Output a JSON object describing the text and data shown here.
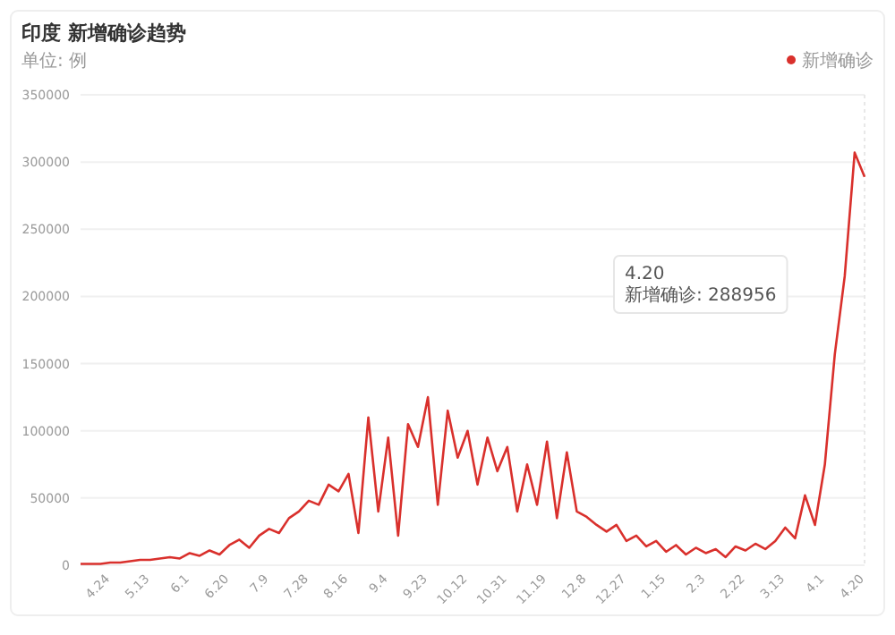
{
  "chart_data": {
    "type": "line",
    "title": "印度 新增确诊趋势",
    "subtitle": "单位: 例",
    "categories": [
      null,
      null,
      null,
      "4.24",
      null,
      null,
      null,
      "5.13",
      null,
      null,
      null,
      "6.1",
      null,
      null,
      null,
      "6.20",
      null,
      null,
      null,
      "7.9",
      null,
      null,
      null,
      "7.28",
      null,
      null,
      null,
      "8.16",
      null,
      null,
      null,
      "9.4",
      null,
      null,
      null,
      "9.23",
      null,
      null,
      null,
      "10.12",
      null,
      null,
      null,
      "10.31",
      null,
      null,
      null,
      "11.19",
      null,
      null,
      null,
      "12.8",
      null,
      null,
      null,
      "12.27",
      null,
      null,
      null,
      "1.15",
      null,
      null,
      null,
      "2.3",
      null,
      null,
      null,
      "2.22",
      null,
      null,
      null,
      "3.13",
      null,
      null,
      null,
      "4.1",
      null,
      null,
      null,
      "4.20"
    ],
    "series": [
      {
        "name": "新增确诊",
        "color": "#d9302c",
        "values": [
          1000,
          1000,
          1000,
          2000,
          2000,
          3000,
          4000,
          4000,
          5000,
          6000,
          5000,
          9000,
          7000,
          11000,
          8000,
          15000,
          19000,
          13000,
          22000,
          27000,
          24000,
          35000,
          40000,
          48000,
          45000,
          60000,
          55000,
          68000,
          24000,
          110000,
          40000,
          95000,
          22000,
          105000,
          88000,
          125000,
          45000,
          115000,
          80000,
          100000,
          60000,
          95000,
          70000,
          88000,
          40000,
          75000,
          45000,
          92000,
          35000,
          84000,
          40000,
          36000,
          30000,
          25000,
          30000,
          18000,
          22000,
          14000,
          18000,
          10000,
          15000,
          8000,
          13000,
          9000,
          12000,
          6000,
          14000,
          11000,
          16000,
          12000,
          18000,
          28000,
          20000,
          52000,
          30000,
          75000,
          157000,
          215000,
          307000,
          288956
        ]
      }
    ],
    "ylim": [
      0,
      350000
    ],
    "yticks": [
      0,
      50000,
      100000,
      150000,
      200000,
      250000,
      300000,
      350000
    ],
    "grid": "y",
    "legend": "top right",
    "marker": "none",
    "line_style": "solid",
    "annotations": [
      "4.20\n新增确诊: 288956"
    ]
  }
}
